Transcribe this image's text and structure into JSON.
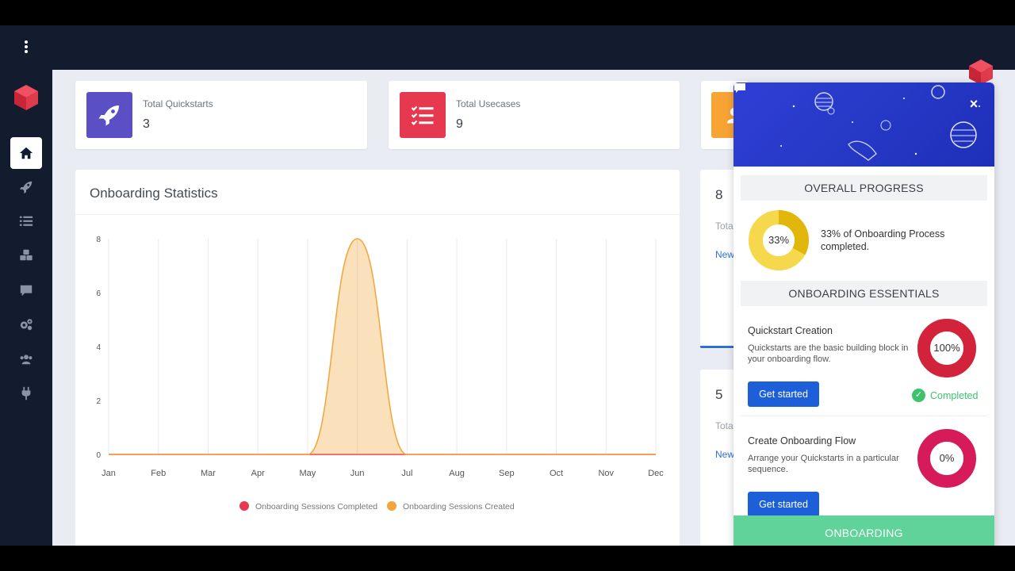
{
  "stats": [
    {
      "label": "Total Quickstarts",
      "value": "3",
      "icon": "rocket-icon",
      "color": "#5b4fc5"
    },
    {
      "label": "Total Usecases",
      "value": "9",
      "icon": "checklist-icon",
      "color": "#e6384f"
    },
    {
      "icon": "user-icon",
      "color": "#f7a435"
    }
  ],
  "chart_card": {
    "title": "Onboarding Statistics"
  },
  "chart_data": {
    "type": "area",
    "categories": [
      "Jan",
      "Feb",
      "Mar",
      "Apr",
      "May",
      "Jun",
      "Jul",
      "Aug",
      "Sep",
      "Oct",
      "Nov",
      "Dec"
    ],
    "yticks": [
      "0",
      "2",
      "4",
      "6",
      "8"
    ],
    "ylim": [
      0,
      8
    ],
    "series": [
      {
        "name": "Onboarding Sessions Completed",
        "color": "#e6384f",
        "values": [
          0,
          0,
          0,
          0,
          0,
          0,
          0,
          0,
          0,
          0,
          0,
          0
        ]
      },
      {
        "name": "Onboarding Sessions Created",
        "color": "#f2a53b",
        "values": [
          0,
          0,
          0,
          0,
          0,
          8,
          0,
          0,
          0,
          0,
          0,
          0
        ]
      }
    ],
    "legend_position": "bottom",
    "grid": "vertical"
  },
  "right_cards": [
    {
      "value": "8",
      "sub": "Tota",
      "link": "New"
    },
    {
      "value": "5",
      "sub": "Tota",
      "link": "New"
    }
  ],
  "panel": {
    "close_label": "×",
    "overall_progress_title": "OVERALL PROGRESS",
    "progress_percent_label": "33%",
    "progress_fraction": 0.33,
    "progress_text": "33% of Onboarding Process completed.",
    "essentials_title": "ONBOARDING ESSENTIALS",
    "items": [
      {
        "title": "Quickstart Creation",
        "description": "Quickstarts are the basic building block in your onboarding flow.",
        "button": "Get started",
        "percent_label": "100%",
        "fraction": 1.0,
        "status": "Completed"
      },
      {
        "title": "Create Onboarding Flow",
        "description": "Arrange your Quickstarts in a particular sequence.",
        "button": "Get started",
        "percent_label": "0%",
        "fraction": 0
      }
    ],
    "footer_label": "ONBOARDING"
  },
  "colors": {
    "sidebar": "#131b2e",
    "accent_blue": "#1d5fd8",
    "success_green": "#3cc46c",
    "onboarding_green": "#5fd39a",
    "progress_yellow": "#f2c514",
    "ring_red": "#d3233b",
    "ring_pink": "#d71a5a"
  }
}
